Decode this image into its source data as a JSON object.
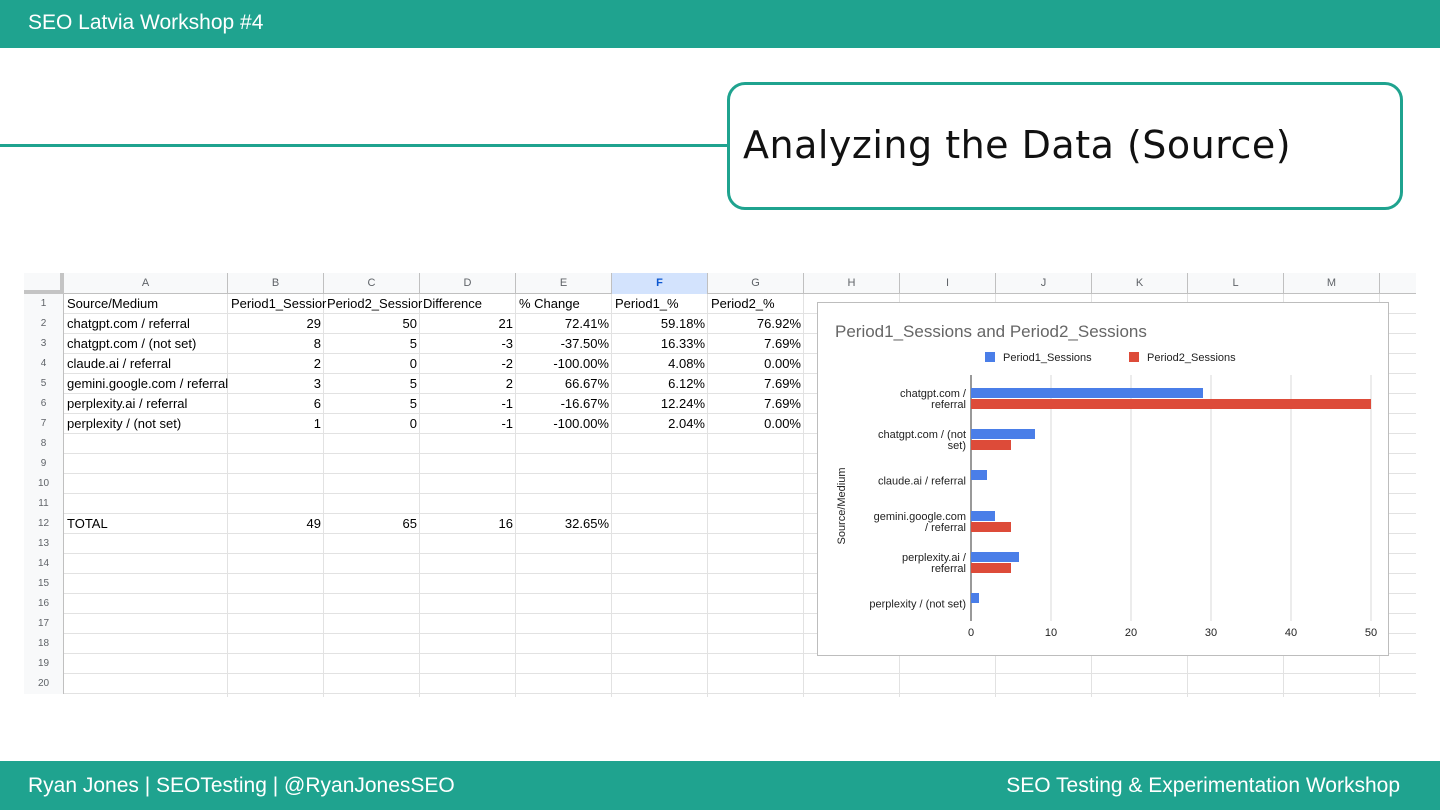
{
  "header": {
    "title": "SEO Latvia Workshop #4"
  },
  "slide": {
    "title": "Analyzing the Data (Source)"
  },
  "spreadsheet": {
    "columns": [
      "A",
      "B",
      "C",
      "D",
      "E",
      "F",
      "G",
      "H",
      "I",
      "J",
      "K",
      "L",
      "M"
    ],
    "selected_column": "F",
    "row_numbers": [
      "1",
      "2",
      "3",
      "4",
      "5",
      "6",
      "7",
      "8",
      "9",
      "10",
      "11",
      "12",
      "13",
      "14",
      "15",
      "16",
      "17",
      "18",
      "19",
      "20"
    ],
    "header_row": [
      "Source/Medium",
      "Period1_Sessior",
      "Period2_Sessior",
      "Difference",
      "% Change",
      "Period1_%",
      "Period2_%"
    ],
    "rows": [
      [
        "chatgpt.com / referral",
        "29",
        "50",
        "21",
        "72.41%",
        "59.18%",
        "76.92%"
      ],
      [
        "chatgpt.com / (not set)",
        "8",
        "5",
        "-3",
        "-37.50%",
        "16.33%",
        "7.69%"
      ],
      [
        "claude.ai / referral",
        "2",
        "0",
        "-2",
        "-100.00%",
        "4.08%",
        "0.00%"
      ],
      [
        "gemini.google.com / referral",
        "3",
        "5",
        "2",
        "66.67%",
        "6.12%",
        "7.69%"
      ],
      [
        "perplexity.ai / referral",
        "6",
        "5",
        "-1",
        "-16.67%",
        "12.24%",
        "7.69%"
      ],
      [
        "perplexity / (not set)",
        "1",
        "0",
        "-1",
        "-100.00%",
        "2.04%",
        "0.00%"
      ]
    ],
    "total_row": [
      "TOTAL",
      "49",
      "65",
      "16",
      "32.65%"
    ]
  },
  "chart_data": {
    "type": "bar",
    "orientation": "horizontal",
    "title": "Period1_Sessions and Period2_Sessions",
    "ylabel": "Source/Medium",
    "xlabel": "",
    "categories": [
      [
        "chatgpt.com /",
        "referral"
      ],
      [
        "chatgpt.com / (not",
        "set)"
      ],
      [
        "claude.ai / referral"
      ],
      [
        "gemini.google.com",
        "/ referral"
      ],
      [
        "perplexity.ai /",
        "referral"
      ],
      [
        "perplexity / (not set)"
      ]
    ],
    "series": [
      {
        "name": "Period1_Sessions",
        "color": "#4a7ee8",
        "values": [
          29,
          8,
          2,
          3,
          6,
          1
        ]
      },
      {
        "name": "Period2_Sessions",
        "color": "#dd4b39",
        "values": [
          50,
          5,
          0,
          5,
          5,
          0
        ]
      }
    ],
    "xlim": [
      0,
      50
    ],
    "xticks": [
      "0",
      "10",
      "20",
      "30",
      "40",
      "50"
    ],
    "grid": true,
    "legend": "top"
  },
  "footer": {
    "left": "Ryan Jones | SEOTesting | @RyanJonesSEO",
    "right": "SEO Testing & Experimentation Workshop"
  }
}
